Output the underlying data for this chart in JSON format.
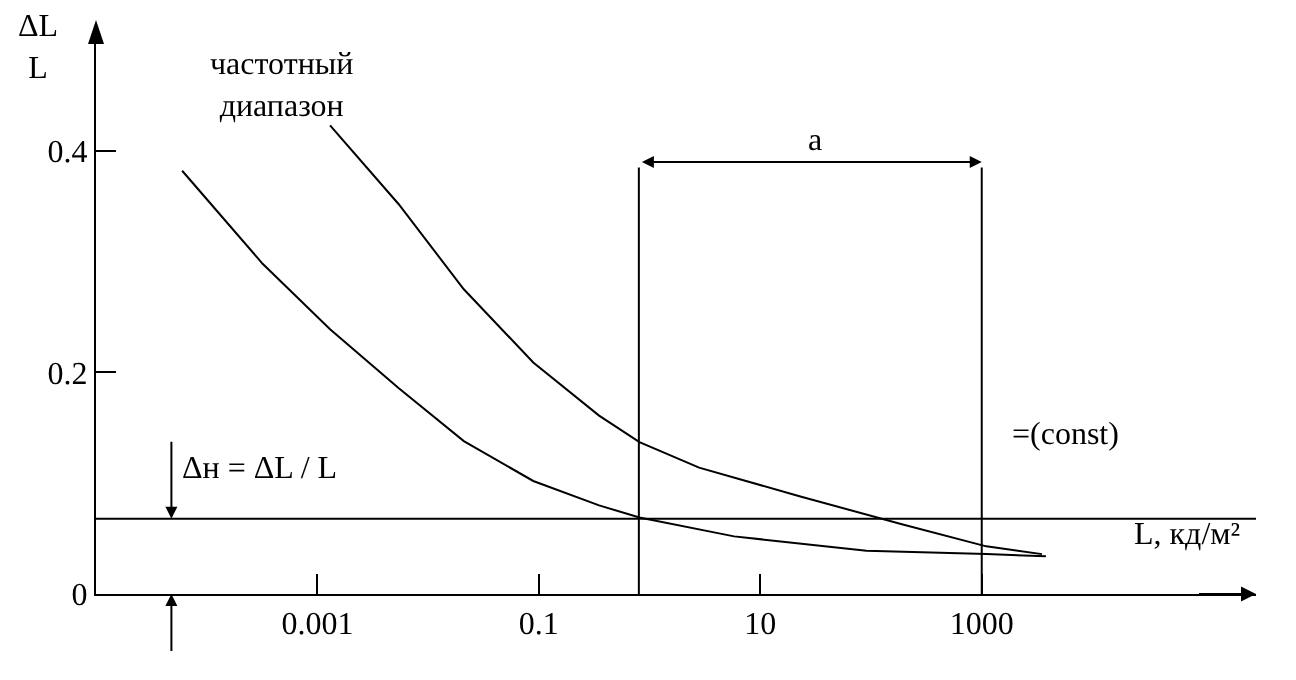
{
  "chart_data": {
    "type": "line",
    "ylabel": "ΔL\nL",
    "xlabel": "L, кд/м²",
    "series": [
      {
        "color": "#000000",
        "x": [
          6e-05,
          0.00032,
          0.0013,
          0.0054,
          0.021,
          0.089,
          0.35,
          0.81,
          5.8,
          91,
          1100,
          3800
        ],
        "values": [
          0.382,
          0.298,
          0.239,
          0.186,
          0.138,
          0.102,
          0.08,
          0.069,
          0.052,
          0.039,
          0.036,
          0.034
        ]
      },
      {
        "color": "#000000",
        "x": [
          0.0013,
          0.0054,
          0.021,
          0.089,
          0.35,
          0.81,
          2.8,
          23,
          190,
          1100,
          3500
        ],
        "values": [
          0.423,
          0.352,
          0.275,
          0.209,
          0.161,
          0.137,
          0.114,
          0.088,
          0.063,
          0.043,
          0.036
        ]
      }
    ],
    "log": "x",
    "xlim": [
      1e-05,
      300000
    ],
    "ylim": [
      0,
      0.5
    ],
    "xticks": [
      0.001,
      0.1,
      10,
      1000
    ],
    "yticks": [
      0,
      0.2,
      0.4
    ],
    "grid": false,
    "marker": "none",
    "line_style": "solid",
    "ref_lines": [
      {
        "axis": "y",
        "value": 0.068,
        "label": "Δн = ΔL / L"
      },
      {
        "axis": "x",
        "value": 0.8,
        "label": null
      },
      {
        "axis": "x",
        "value": 1000,
        "label": null
      }
    ],
    "annotations": [
      "частотный\nдиапазон",
      "a",
      "=(const)"
    ]
  }
}
